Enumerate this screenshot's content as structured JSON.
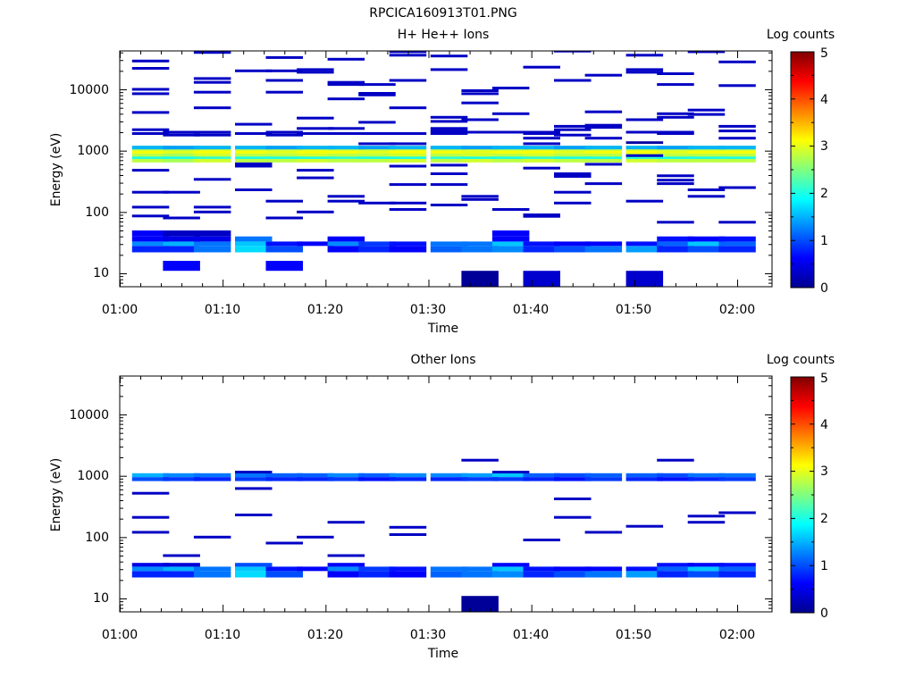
{
  "figure": {
    "title": "RPCICA160913T01.PNG"
  },
  "colorbar_stops": [
    "#00008f",
    "#0000ff",
    "#00ffff",
    "#ffff00",
    "#ff0000",
    "#800000"
  ],
  "chart_data": [
    {
      "type": "heatmap",
      "title": "H+ He++ Ions",
      "xlabel": "Time",
      "ylabel": "Energy (eV)",
      "y_scale": "log",
      "x_ticks": [
        "01:00",
        "01:10",
        "01:20",
        "01:30",
        "01:40",
        "01:50",
        "02:00"
      ],
      "y_ticks": [
        "10",
        "100",
        "1000",
        "10000"
      ],
      "colorbar": {
        "label": "Log counts",
        "ticks": [
          "0",
          "1",
          "2",
          "3",
          "4",
          "5"
        ],
        "range": [
          0,
          5
        ]
      },
      "time_bins": [
        "01:03",
        "01:06",
        "01:09",
        "01:13",
        "01:16",
        "01:19",
        "01:22",
        "01:25",
        "01:28",
        "01:32",
        "01:35",
        "01:38",
        "01:41",
        "01:44",
        "01:47",
        "01:51",
        "01:54",
        "01:57",
        "02:00"
      ],
      "bands": [
        {
          "emin": 640,
          "emax": 1200,
          "values": [
            2.8,
            2.7,
            2.9,
            2.8,
            2.8,
            2.9,
            2.8,
            2.8,
            2.9,
            2.8,
            2.9,
            2.8,
            2.9,
            2.8,
            2.8,
            2.9,
            2.8,
            2.8,
            2.8
          ]
        },
        {
          "emin": 730,
          "emax": 800,
          "values": [
            2.0,
            2.0,
            2.1,
            2.0,
            2.0,
            2.0,
            2.1,
            2.0,
            2.0,
            2.1,
            2.0,
            2.0,
            2.1,
            2.0,
            2.0,
            2.1,
            2.0,
            2.0,
            2.0
          ]
        },
        {
          "emin": 900,
          "emax": 1000,
          "values": [
            3.1,
            3.0,
            3.1,
            3.1,
            3.0,
            3.1,
            3.1,
            3.0,
            3.1,
            3.1,
            3.0,
            3.1,
            3.1,
            3.0,
            3.1,
            3.1,
            3.0,
            3.1,
            3.1
          ]
        },
        {
          "emin": 1050,
          "emax": 1200,
          "values": [
            1.5,
            1.4,
            1.5,
            1.5,
            1.4,
            1.5,
            1.5,
            1.4,
            1.5,
            1.5,
            1.4,
            1.5,
            1.5,
            1.4,
            1.5,
            1.5,
            1.4,
            1.5,
            1.5
          ]
        },
        {
          "emin": 22,
          "emax": 28,
          "values": [
            0.8,
            0.8,
            1.2,
            1.7,
            1.0,
            0.0,
            0.6,
            0.8,
            0.6,
            1.1,
            1.2,
            1.3,
            0.8,
            1.0,
            1.2,
            1.4,
            0.8,
            1.0,
            0.8
          ]
        },
        {
          "emin": 28,
          "emax": 33,
          "values": [
            1.3,
            1.5,
            1.2,
            1.6,
            0.7,
            0.6,
            1.3,
            0.9,
            0.7,
            1.2,
            1.2,
            1.6,
            0.7,
            0.6,
            0.6,
            0.7,
            1.1,
            1.6,
            1.1
          ]
        },
        {
          "emin": 33,
          "emax": 40,
          "values": [
            0.6,
            0.5,
            0.5,
            1.2,
            0.0,
            0.0,
            0.6,
            0.0,
            0.0,
            0.0,
            0.0,
            0.6,
            0.0,
            0.0,
            0.0,
            0.0,
            0.7,
            0.6,
            0.7
          ]
        },
        {
          "emin": 40,
          "emax": 50,
          "values": [
            0.6,
            0.3,
            0.3,
            0.0,
            0.0,
            0.0,
            0.0,
            0.0,
            0.0,
            0.0,
            0.0,
            0.6,
            0.0,
            0.0,
            0.0,
            0.0,
            0.0,
            0.0,
            0.0
          ]
        },
        {
          "emin": 11,
          "emax": 16,
          "values": [
            0.0,
            0.6,
            0.0,
            0.0,
            0.6,
            0.0,
            0.0,
            0.0,
            0.0,
            0.0,
            0.0,
            0.0,
            0.0,
            0.0,
            0.0,
            0.0,
            0.0,
            0.0,
            0.0
          ]
        },
        {
          "emin": 6,
          "emax": 11,
          "values": [
            0.0,
            0.0,
            0.0,
            0.0,
            0.0,
            0.0,
            0.0,
            0.0,
            0.0,
            0.0,
            0.05,
            0.0,
            0.35,
            0.0,
            0.0,
            0.35,
            0.0,
            0.0,
            0.0
          ]
        },
        {
          "emin": 1290,
          "emax": 1420,
          "values": [
            0.0,
            0.0,
            0.0,
            0.0,
            0.0,
            0.0,
            0.0,
            0.0,
            0.0,
            0.0,
            0.0,
            0.0,
            0.0,
            0.0,
            0.0,
            0.1,
            0.0,
            0.0,
            0.0
          ]
        }
      ],
      "lines": [
        {
          "bin": 0,
          "energies": [
            29000,
            22000,
            10000,
            8500,
            4200,
            2200,
            1900,
            480,
            210,
            120,
            86
          ]
        },
        {
          "bin": 1,
          "energies": [
            2000,
            1800,
            210,
            80
          ]
        },
        {
          "bin": 2,
          "energies": [
            40000,
            15000,
            13000,
            9000,
            5000,
            2000,
            1800,
            340,
            120,
            100
          ]
        },
        {
          "bin": 3,
          "energies": [
            20000,
            2700,
            1900,
            610,
            560,
            230
          ]
        },
        {
          "bin": 4,
          "energies": [
            33000,
            20000,
            14000,
            9000,
            2000,
            1800,
            80,
            150
          ]
        },
        {
          "bin": 5,
          "energies": [
            21000,
            19000,
            3400,
            2300,
            1900,
            480,
            360,
            100
          ]
        },
        {
          "bin": 6,
          "energies": [
            31000,
            13000,
            12000,
            7000,
            2300,
            1900,
            180,
            150
          ]
        },
        {
          "bin": 7,
          "energies": [
            12000,
            8600,
            8100,
            2900,
            1900,
            1300,
            140
          ]
        },
        {
          "bin": 8,
          "energies": [
            41000,
            36000,
            14000,
            5000,
            1900,
            1300,
            560,
            280,
            140,
            110
          ]
        },
        {
          "bin": 9,
          "energies": [
            35000,
            21000,
            3500,
            3000,
            2300,
            2100,
            1900,
            580,
            420,
            280,
            130
          ]
        },
        {
          "bin": 10,
          "energies": [
            9500,
            8500,
            6000,
            3200,
            2000,
            180,
            160
          ]
        },
        {
          "bin": 11,
          "energies": [
            10500,
            4000,
            2000,
            110
          ]
        },
        {
          "bin": 12,
          "energies": [
            23000,
            2000,
            1900,
            1600,
            1300,
            520,
            90,
            85
          ]
        },
        {
          "bin": 13,
          "energies": [
            42000,
            14000,
            2500,
            2200,
            1800,
            420,
            380,
            210,
            140
          ]
        },
        {
          "bin": 14,
          "energies": [
            17000,
            4300,
            2600,
            2400,
            1600,
            600,
            290
          ]
        },
        {
          "bin": 15,
          "energies": [
            36000,
            21000,
            19000,
            3200,
            2000,
            150,
            830
          ]
        },
        {
          "bin": 16,
          "energies": [
            18000,
            12000,
            4000,
            3500,
            2000,
            1900,
            390,
            330,
            290,
            68
          ]
        },
        {
          "bin": 17,
          "energies": [
            41000,
            4600,
            3900,
            230,
            180
          ]
        },
        {
          "bin": 18,
          "energies": [
            28000,
            11500,
            2500,
            2100,
            1600,
            250,
            68
          ]
        }
      ]
    },
    {
      "type": "heatmap",
      "title": "Other Ions",
      "xlabel": "Time",
      "ylabel": "Energy (eV)",
      "y_scale": "log",
      "x_ticks": [
        "01:00",
        "01:10",
        "01:20",
        "01:30",
        "01:40",
        "01:50",
        "02:00"
      ],
      "y_ticks": [
        "10",
        "100",
        "1000",
        "10000"
      ],
      "colorbar": {
        "label": "Log counts",
        "ticks": [
          "0",
          "1",
          "2",
          "3",
          "4",
          "5"
        ],
        "range": [
          0,
          5
        ]
      },
      "time_bins": [
        "01:03",
        "01:06",
        "01:09",
        "01:13",
        "01:16",
        "01:19",
        "01:22",
        "01:25",
        "01:28",
        "01:32",
        "01:35",
        "01:38",
        "01:41",
        "01:44",
        "01:47",
        "01:51",
        "01:54",
        "01:57",
        "02:00"
      ],
      "bands": [
        {
          "emin": 950,
          "emax": 1100,
          "values": [
            1.5,
            1.3,
            1.2,
            1.2,
            1.1,
            1.1,
            1.3,
            1.1,
            1.3,
            1.3,
            1.4,
            1.6,
            1.1,
            1.0,
            1.1,
            1.1,
            1.0,
            1.2,
            1.2
          ]
        },
        {
          "emin": 820,
          "emax": 950,
          "values": [
            1.0,
            0.9,
            0.8,
            0.9,
            0.8,
            0.8,
            0.9,
            0.7,
            0.8,
            0.8,
            0.9,
            0.9,
            0.8,
            0.7,
            0.9,
            0.8,
            0.7,
            0.8,
            0.9
          ]
        },
        {
          "emin": 22,
          "emax": 28,
          "values": [
            0.8,
            0.8,
            1.2,
            1.7,
            1.0,
            0.0,
            0.6,
            0.8,
            0.6,
            1.1,
            1.2,
            1.3,
            0.8,
            1.0,
            1.2,
            1.4,
            0.8,
            1.0,
            0.8
          ]
        },
        {
          "emin": 28,
          "emax": 33,
          "values": [
            1.3,
            1.5,
            1.2,
            1.6,
            0.7,
            0.6,
            1.3,
            0.9,
            0.7,
            1.2,
            1.2,
            1.6,
            0.7,
            0.6,
            0.6,
            0.7,
            1.1,
            1.6,
            1.1
          ]
        },
        {
          "emin": 33,
          "emax": 38,
          "values": [
            0.5,
            0.4,
            0.0,
            1.0,
            0.0,
            0.0,
            0.6,
            0.0,
            0.0,
            0.0,
            0.0,
            0.6,
            0.0,
            0.0,
            0.0,
            0.0,
            0.7,
            0.6,
            0.7
          ]
        },
        {
          "emin": 6,
          "emax": 11,
          "values": [
            0.0,
            0.0,
            0.0,
            0.0,
            0.0,
            0.0,
            0.0,
            0.0,
            0.0,
            0.0,
            0.05,
            0.0,
            0.0,
            0.0,
            0.0,
            0.0,
            0.0,
            0.0,
            0.0
          ]
        }
      ],
      "lines": [
        {
          "bin": 0,
          "energies": [
            520,
            210,
            120
          ]
        },
        {
          "bin": 1,
          "energies": [
            50
          ]
        },
        {
          "bin": 2,
          "energies": [
            100
          ]
        },
        {
          "bin": 3,
          "energies": [
            1150,
            620,
            230
          ]
        },
        {
          "bin": 4,
          "energies": [
            80
          ]
        },
        {
          "bin": 5,
          "energies": [
            100
          ]
        },
        {
          "bin": 6,
          "energies": [
            175,
            50
          ]
        },
        {
          "bin": 8,
          "energies": [
            145,
            110
          ]
        },
        {
          "bin": 10,
          "energies": [
            1800
          ]
        },
        {
          "bin": 11,
          "energies": [
            1150
          ]
        },
        {
          "bin": 12,
          "energies": [
            90
          ]
        },
        {
          "bin": 13,
          "energies": [
            420,
            210
          ]
        },
        {
          "bin": 14,
          "energies": [
            120
          ]
        },
        {
          "bin": 15,
          "energies": [
            150
          ]
        },
        {
          "bin": 16,
          "energies": [
            1800
          ]
        },
        {
          "bin": 17,
          "energies": [
            220,
            175
          ]
        },
        {
          "bin": 18,
          "energies": [
            250
          ]
        }
      ]
    }
  ]
}
